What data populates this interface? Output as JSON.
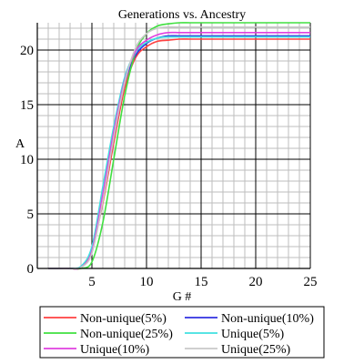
{
  "chart_data": {
    "type": "line",
    "title": "Generations vs. Ancestry",
    "xlabel": "G #",
    "ylabel": "A",
    "xlim": [
      0,
      25
    ],
    "ylim": [
      0,
      22.5
    ],
    "xticks": [
      5,
      10,
      15,
      20,
      25
    ],
    "yticks": [
      0,
      5,
      10,
      15,
      20
    ],
    "grid": true,
    "legend_position": "bottom",
    "x": [
      1,
      2,
      3,
      4,
      5,
      6,
      7,
      8,
      9,
      10,
      11,
      12,
      13,
      14,
      15,
      20,
      25
    ],
    "series": [
      {
        "name": "Non-unique(5%)",
        "color": "#ff4040",
        "values": [
          0,
          0,
          0,
          0.1,
          1.8,
          6.0,
          11.5,
          16.5,
          19.3,
          20.3,
          20.8,
          20.9,
          21.0,
          21.0,
          21.0,
          21.0,
          21.0
        ]
      },
      {
        "name": "Non-unique(10%)",
        "color": "#3030e0",
        "values": [
          0,
          0,
          0,
          0.1,
          1.5,
          6.5,
          12.0,
          17.0,
          19.5,
          20.6,
          21.1,
          21.3,
          21.3,
          21.3,
          21.3,
          21.3,
          21.3
        ]
      },
      {
        "name": "Non-unique(25%)",
        "color": "#40e040",
        "values": [
          0,
          0,
          0,
          0,
          0.6,
          4.2,
          10.0,
          15.8,
          19.8,
          21.5,
          22.2,
          22.4,
          22.5,
          22.5,
          22.5,
          22.5,
          22.5
        ]
      },
      {
        "name": "Unique(5%)",
        "color": "#40e0e0",
        "values": [
          0,
          0,
          0,
          0.2,
          2.0,
          7.5,
          13.0,
          17.5,
          19.8,
          20.7,
          21.1,
          21.2,
          21.2,
          21.2,
          21.2,
          21.2,
          21.2
        ]
      },
      {
        "name": "Unique(10%)",
        "color": "#e040e0",
        "values": [
          0,
          0,
          0,
          0.1,
          1.6,
          6.8,
          12.5,
          17.2,
          19.9,
          20.9,
          21.4,
          21.6,
          21.6,
          21.6,
          21.6,
          21.6,
          21.6
        ]
      },
      {
        "name": "Unique(25%)",
        "color": "#c8c8c8",
        "values": [
          0,
          0,
          0,
          0.1,
          1.4,
          6.2,
          12.0,
          17.0,
          20.2,
          21.5,
          22.0,
          22.1,
          22.1,
          22.1,
          22.1,
          22.1,
          22.1
        ]
      }
    ]
  }
}
